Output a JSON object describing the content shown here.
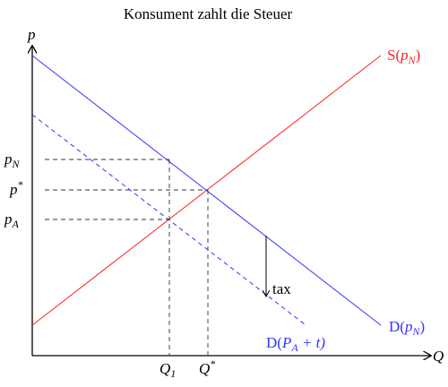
{
  "title": "Konsument zahlt die Steuer",
  "axes": {
    "y": "p",
    "x": "Q"
  },
  "curves": {
    "supply": {
      "before": "S(",
      "var": "p",
      "sub": "N",
      "after": ")"
    },
    "demand": {
      "before": "D(",
      "var": "p",
      "sub": "N",
      "after": ")"
    },
    "demand_shifted": {
      "before": "D(",
      "var": "P",
      "sub": "A",
      "after": " + t)"
    }
  },
  "tax": "tax",
  "price_labels": [
    {
      "var": "p",
      "sub": "N"
    },
    {
      "var": "p",
      "sup": "*"
    },
    {
      "var": "p",
      "sub": "A"
    }
  ],
  "quantity_labels": [
    {
      "var": "Q",
      "sub": "1"
    },
    {
      "var": "Q",
      "sup": "*"
    }
  ]
}
